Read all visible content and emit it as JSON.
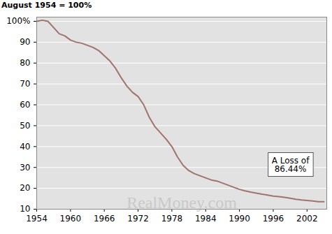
{
  "chart_data": {
    "type": "line",
    "title": "August 1954 = 100%",
    "x": [
      1954,
      1955,
      1956,
      1957,
      1958,
      1959,
      1960,
      1961,
      1962,
      1963,
      1964,
      1965,
      1966,
      1967,
      1968,
      1969,
      1970,
      1971,
      1972,
      1973,
      1974,
      1975,
      1976,
      1977,
      1978,
      1979,
      1980,
      1981,
      1982,
      1983,
      1984,
      1985,
      1986,
      1987,
      1988,
      1989,
      1990,
      1991,
      1992,
      1993,
      1994,
      1995,
      1996,
      1997,
      1998,
      1999,
      2000,
      2001,
      2002,
      2003,
      2004,
      2005
    ],
    "values": [
      100,
      100.5,
      100,
      97,
      94,
      93,
      91,
      90,
      89.5,
      88.5,
      87.5,
      86,
      83.5,
      81,
      77.5,
      73,
      69,
      66,
      64,
      60,
      54,
      49.5,
      46.5,
      43.5,
      40,
      35,
      31,
      28.5,
      27,
      26,
      25,
      24,
      23.5,
      22.5,
      21.5,
      20.5,
      19.5,
      18.8,
      18.2,
      17.7,
      17.2,
      16.8,
      16.3,
      16,
      15.7,
      15.3,
      14.8,
      14.4,
      14.2,
      13.9,
      13.6,
      13.56
    ],
    "color": "#a0736b",
    "xlim": [
      1954,
      2005.5
    ],
    "xticks": [
      1954,
      1960,
      1966,
      1972,
      1978,
      1984,
      1990,
      1996,
      2002
    ],
    "ylim": [
      10,
      102
    ],
    "yticks": [
      10,
      20,
      30,
      40,
      50,
      60,
      70,
      80,
      90,
      {
        "value": 100,
        "label": "100%"
      }
    ],
    "grid": true,
    "annotation": "A Loss of\n86.44%",
    "watermark": "RealMoney.com"
  }
}
